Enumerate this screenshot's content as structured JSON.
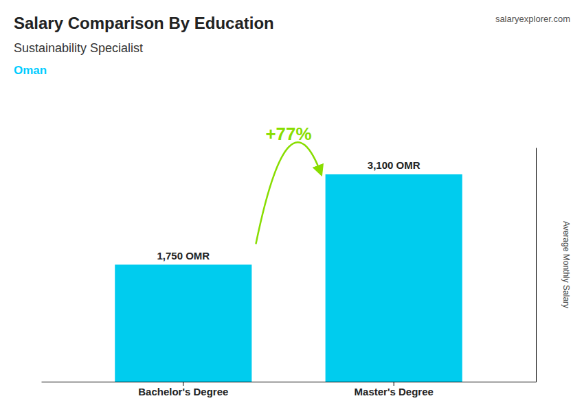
{
  "chart_data": {
    "type": "bar",
    "title": "Salary Comparison By Education",
    "subtitle": "Sustainability Specialist",
    "categories": [
      "Bachelor's Degree",
      "Master's Degree"
    ],
    "values": [
      1750,
      3100
    ],
    "value_labels": [
      "1,750 OMR",
      "3,100 OMR"
    ],
    "color": "#00ccee",
    "y_label": "Average Monthly Salary",
    "ylim": [
      0,
      3500
    ],
    "data_labels": true,
    "tick_labels": "x",
    "annotations": [
      {
        "text": "Oman",
        "color": "#00ccff"
      },
      {
        "text": "salaryexplorer.com"
      },
      {
        "text": "+77%",
        "color": "#88dd00"
      }
    ]
  }
}
